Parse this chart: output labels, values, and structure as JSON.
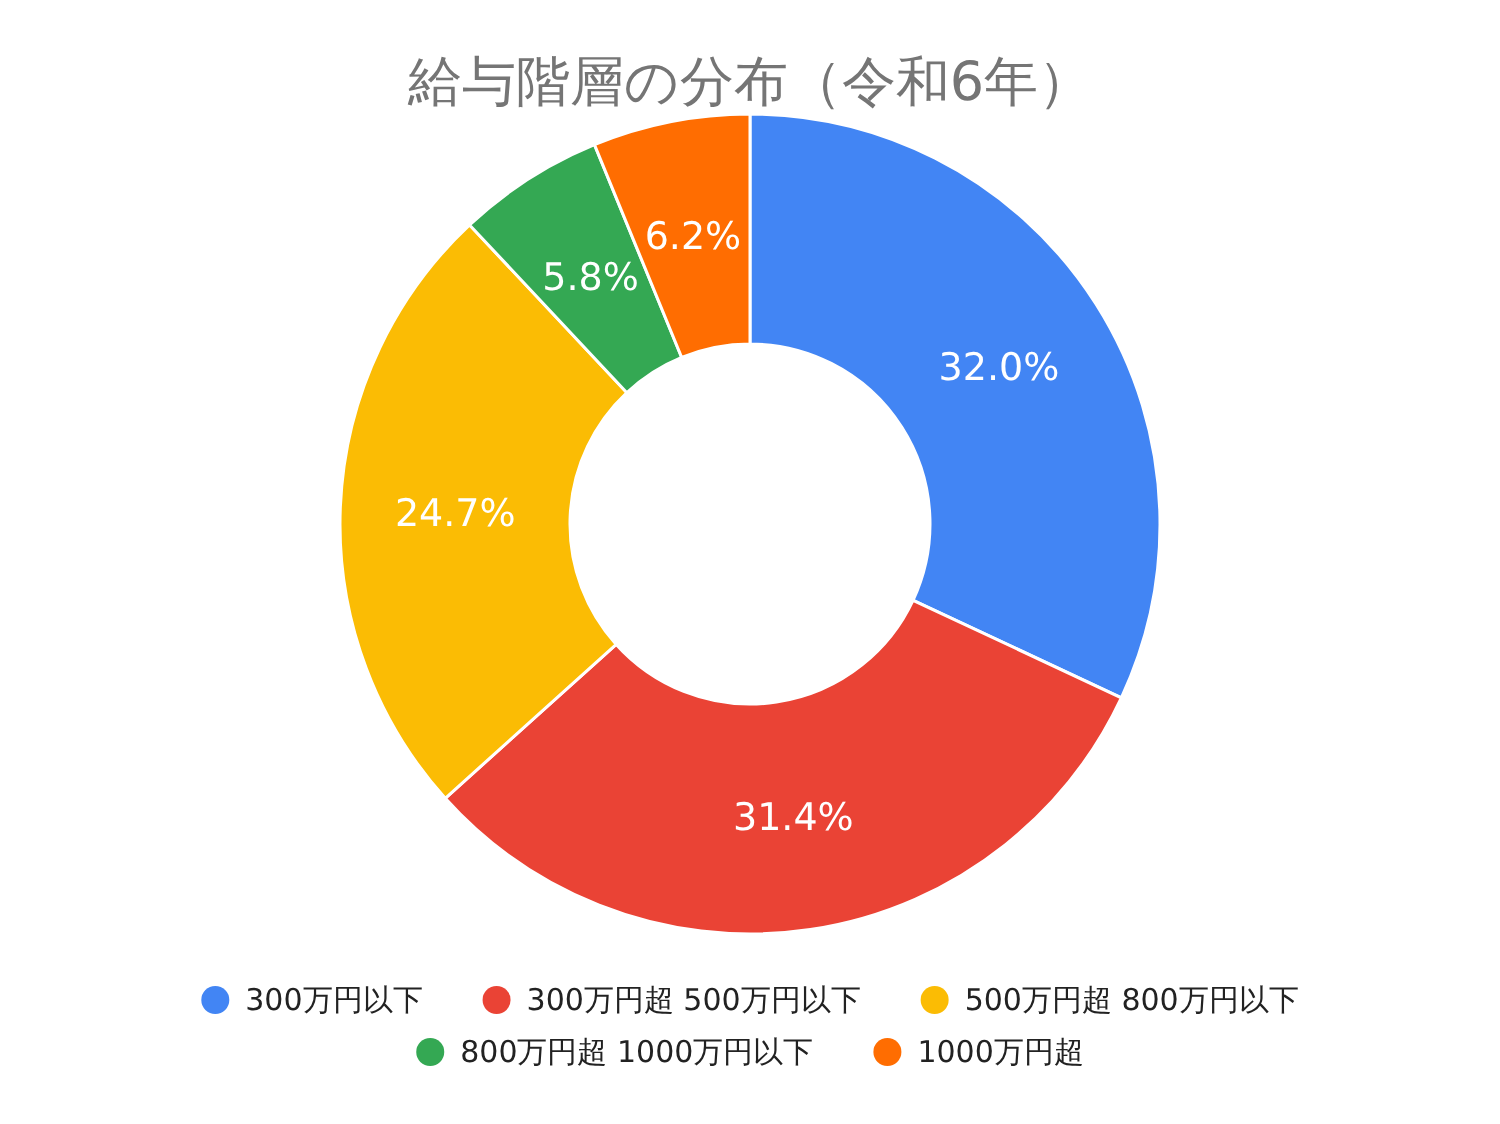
{
  "chart_data": {
    "type": "donut",
    "title": "給与階層の分布（令和6年）",
    "categories": [
      "300万円以下",
      "300万円超 500万円以下",
      "500万円超 800万円以下",
      "800万円超 1000万円以下",
      "1000万円超"
    ],
    "values": [
      32.0,
      31.4,
      24.7,
      5.8,
      6.2
    ],
    "colors": [
      "#4285f4",
      "#ea4335",
      "#fbbc04",
      "#34a853",
      "#ff6d01"
    ],
    "value_labels": [
      "32.0%",
      "31.4%",
      "24.7%",
      "5.8%",
      "6.2%"
    ],
    "legend": "bottom"
  }
}
